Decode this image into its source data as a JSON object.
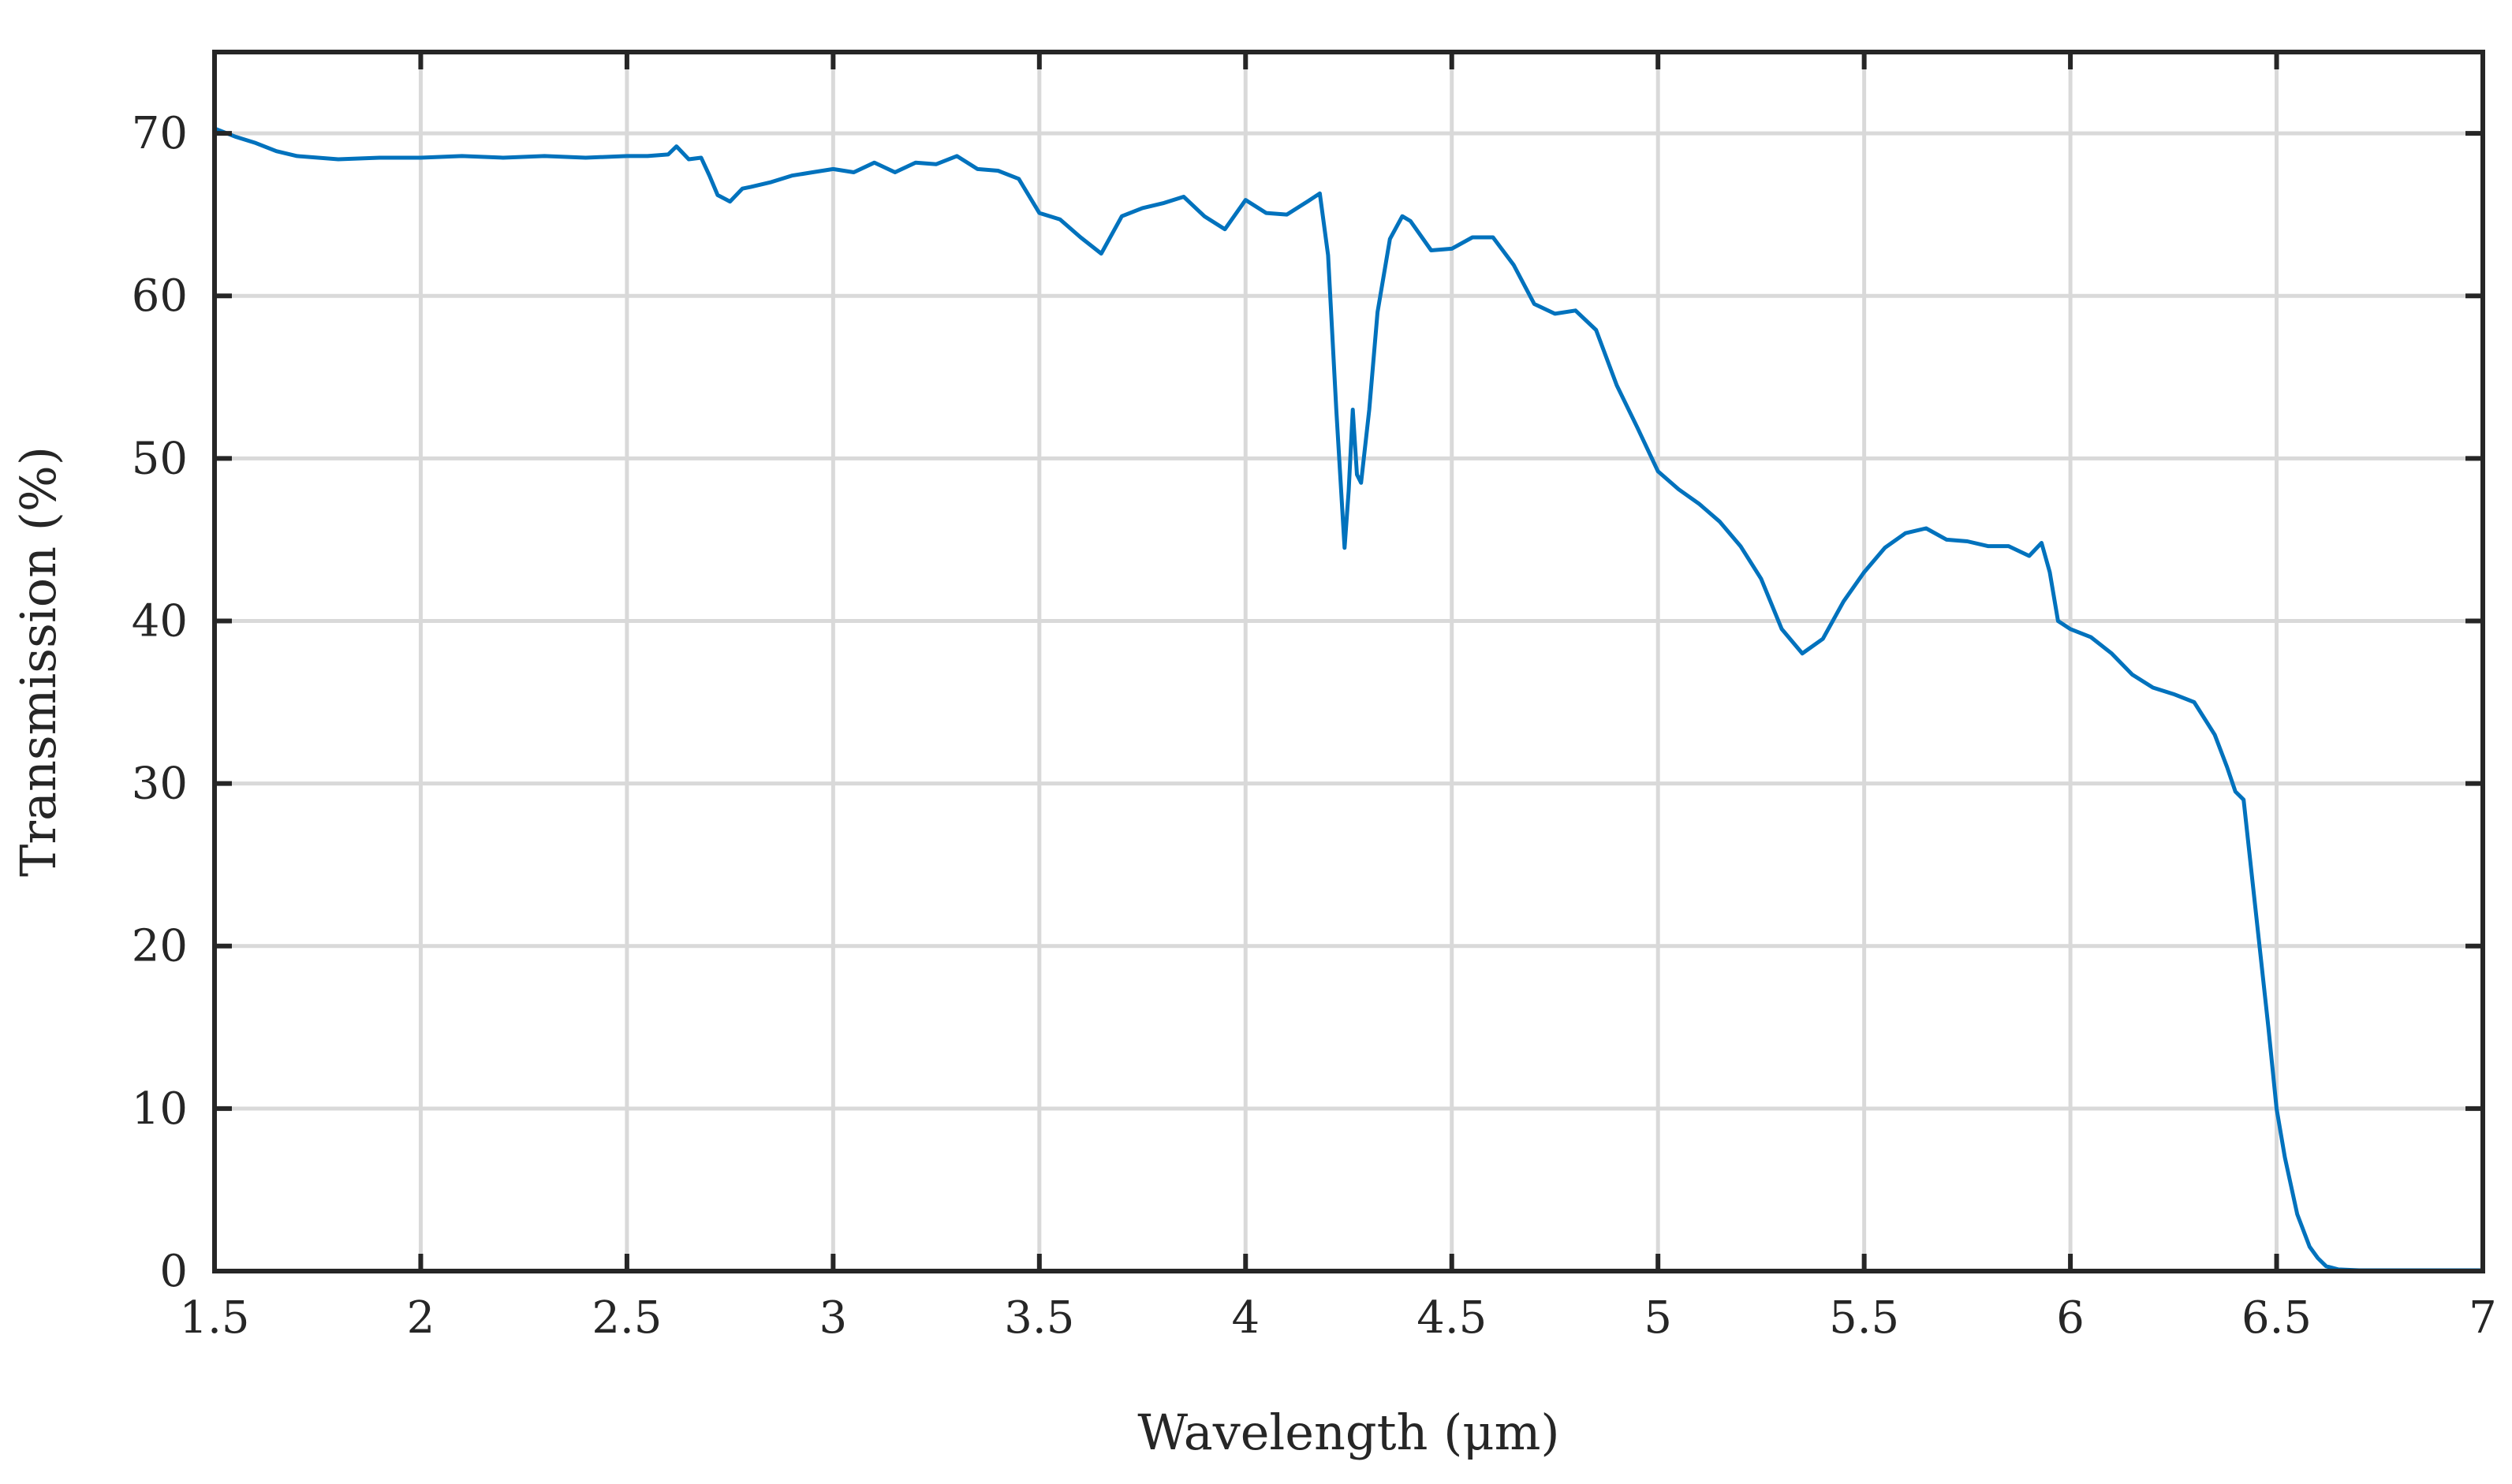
{
  "chart_data": {
    "type": "line",
    "title": "",
    "xlabel": "Wavelength (μm)",
    "ylabel": "Transmission (%)",
    "xlim": [
      1.5,
      7
    ],
    "ylim": [
      0,
      75
    ],
    "x_ticks": [
      1.5,
      2,
      2.5,
      3,
      3.5,
      4,
      4.5,
      5,
      5.5,
      6,
      6.5,
      7
    ],
    "x_tick_labels": [
      "1.5",
      "2",
      "2.5",
      "3",
      "3.5",
      "4",
      "4.5",
      "5",
      "5.5",
      "6",
      "6.5",
      "7"
    ],
    "y_ticks": [
      0,
      10,
      20,
      30,
      40,
      50,
      60,
      70
    ],
    "y_tick_labels": [
      "0",
      "10",
      "20",
      "30",
      "40",
      "50",
      "60",
      "70"
    ],
    "grid": true,
    "legend": "none",
    "colors": {
      "line": "#0072BD",
      "grid": "#d9d9d9",
      "frame": "#262626"
    },
    "series": [
      {
        "x": [
          1.5,
          1.55,
          1.6,
          1.65,
          1.7,
          1.8,
          1.9,
          2.0,
          2.1,
          2.2,
          2.3,
          2.4,
          2.5,
          2.55,
          2.6,
          2.62,
          2.65,
          2.68,
          2.7,
          2.72,
          2.75,
          2.78,
          2.8,
          2.85,
          2.9,
          2.95,
          3.0,
          3.05,
          3.1,
          3.15,
          3.2,
          3.25,
          3.3,
          3.35,
          3.4,
          3.45,
          3.5,
          3.55,
          3.6,
          3.65,
          3.7,
          3.75,
          3.8,
          3.85,
          3.9,
          3.95,
          4.0,
          4.05,
          4.1,
          4.15,
          4.18,
          4.2,
          4.22,
          4.24,
          4.25,
          4.26,
          4.27,
          4.28,
          4.3,
          4.32,
          4.35,
          4.38,
          4.4,
          4.45,
          4.5,
          4.55,
          4.6,
          4.65,
          4.7,
          4.75,
          4.8,
          4.85,
          4.9,
          4.95,
          5.0,
          5.05,
          5.1,
          5.15,
          5.2,
          5.25,
          5.3,
          5.35,
          5.4,
          5.45,
          5.5,
          5.55,
          5.6,
          5.65,
          5.7,
          5.75,
          5.8,
          5.85,
          5.9,
          5.93,
          5.95,
          5.97,
          6.0,
          6.05,
          6.1,
          6.15,
          6.2,
          6.25,
          6.3,
          6.35,
          6.38,
          6.4,
          6.42,
          6.45,
          6.48,
          6.5,
          6.52,
          6.55,
          6.58,
          6.6,
          6.62,
          6.65,
          6.7,
          6.75,
          6.8,
          6.85,
          6.9,
          6.95,
          7.0
        ],
        "y": [
          70.3,
          69.8,
          69.4,
          68.9,
          68.6,
          68.4,
          68.5,
          68.5,
          68.6,
          68.5,
          68.6,
          68.5,
          68.6,
          68.6,
          68.7,
          69.2,
          68.4,
          68.5,
          67.4,
          66.2,
          65.8,
          66.6,
          66.7,
          67.0,
          67.4,
          67.6,
          67.8,
          67.6,
          68.2,
          67.6,
          68.2,
          68.1,
          68.6,
          67.8,
          67.7,
          67.2,
          65.1,
          64.7,
          63.6,
          62.6,
          64.9,
          65.4,
          65.7,
          66.1,
          64.9,
          64.1,
          65.9,
          65.1,
          65.0,
          65.8,
          66.3,
          62.5,
          53.0,
          44.5,
          48.0,
          53.0,
          49.0,
          48.5,
          53.0,
          59.0,
          63.5,
          64.9,
          64.6,
          62.8,
          62.9,
          63.6,
          63.6,
          61.9,
          59.5,
          58.9,
          59.1,
          57.9,
          54.5,
          51.9,
          49.2,
          48.1,
          47.2,
          46.1,
          44.6,
          42.6,
          39.5,
          38.0,
          38.9,
          41.2,
          43.0,
          44.5,
          45.4,
          45.7,
          45.0,
          44.9,
          44.6,
          44.6,
          44.0,
          44.8,
          43.0,
          40.0,
          39.5,
          39.0,
          38.0,
          36.7,
          35.9,
          35.5,
          35.0,
          33.0,
          31.0,
          29.5,
          29.0,
          22.0,
          15.0,
          10.0,
          7.0,
          3.5,
          1.5,
          0.8,
          0.3,
          0.1,
          0.05,
          0.05,
          0.05,
          0.05,
          0.05,
          0.05,
          0.05
        ]
      }
    ]
  }
}
